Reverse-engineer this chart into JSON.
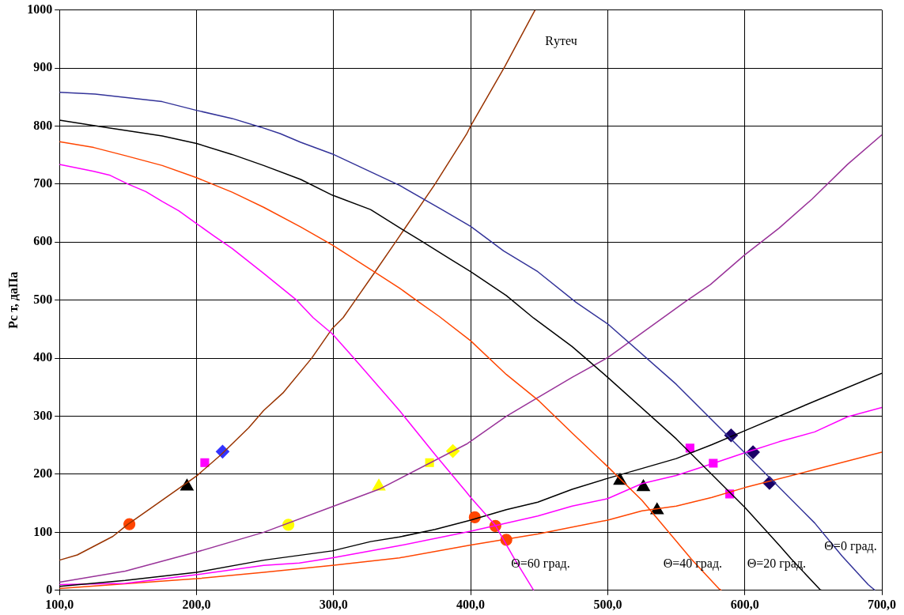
{
  "chart_data": {
    "type": "line",
    "ylabel": "Рс т, даПа",
    "xlim": [
      100,
      700
    ],
    "ylim": [
      0,
      1000
    ],
    "xticks": [
      {
        "value": 100,
        "label": "100,0"
      },
      {
        "value": 200,
        "label": "200,0"
      },
      {
        "value": 300,
        "label": "300,0"
      },
      {
        "value": 400,
        "label": "400,0"
      },
      {
        "value": 500,
        "label": "500,0"
      },
      {
        "value": 600,
        "label": "600,0"
      },
      {
        "value": 700,
        "label": "700,0"
      }
    ],
    "yticks": [
      0,
      100,
      200,
      300,
      400,
      500,
      600,
      700,
      800,
      900,
      1000
    ],
    "grid": true,
    "legend": false,
    "marker": "none",
    "line_style": "solid",
    "annotations": [
      "Rутеч",
      "Θ=60 град.",
      "Θ=40 град.",
      "Θ=20 град.",
      "Θ=0 град."
    ],
    "series": [
      {
        "color": "#333399",
        "x": [
          100,
          126,
          175,
          200,
          226,
          247,
          261,
          276,
          299,
          348,
          379,
          400,
          424,
          449,
          477,
          500,
          550,
          600,
          651,
          671,
          690,
          695
        ],
        "values": [
          858,
          855,
          842,
          827,
          813,
          798,
          787,
          772,
          752,
          698,
          656,
          627,
          585,
          549,
          496,
          459,
          355,
          237,
          116,
          59,
          10,
          0
        ]
      },
      {
        "color": "#000000",
        "x": [
          100,
          133,
          175,
          200,
          226,
          249,
          276,
          299,
          327,
          350,
          364,
          385,
          400,
          426,
          446,
          474,
          500,
          550,
          600,
          625,
          634,
          655,
          656
        ],
        "values": [
          810,
          798,
          783,
          770,
          751,
          732,
          708,
          681,
          656,
          622,
          602,
          571,
          549,
          508,
          469,
          420,
          367,
          261,
          143,
          78,
          54,
          1,
          0
        ]
      },
      {
        "color": "#ff4500",
        "x": [
          100,
          125,
          148,
          175,
          200,
          226,
          249,
          276,
          299,
          327,
          348,
          362,
          377,
          400,
          426,
          450,
          474,
          500,
          525,
          550,
          561,
          581,
          583
        ],
        "values": [
          773,
          763,
          749,
          732,
          711,
          686,
          660,
          626,
          595,
          553,
          521,
          497,
          472,
          430,
          372,
          326,
          271,
          213,
          155,
          85,
          54,
          3,
          0
        ]
      },
      {
        "color": "#ff00ff",
        "x": [
          100,
          125,
          137,
          150,
          163,
          175,
          187,
          200,
          213,
          226,
          249,
          273,
          285,
          299,
          313,
          348,
          374,
          397,
          400,
          418,
          432,
          446
        ],
        "values": [
          734,
          722,
          715,
          700,
          687,
          670,
          654,
          632,
          610,
          589,
          546,
          500,
          470,
          442,
          405,
          310,
          234,
          169,
          160,
          112,
          54,
          0
        ]
      },
      {
        "color": "#993300",
        "x": [
          100,
          113,
          139,
          150,
          164,
          200,
          218,
          238,
          249,
          263,
          284,
          299,
          307,
          315,
          330,
          346,
          374,
          397,
          400,
          425,
          447
        ],
        "values": [
          52,
          61,
          93,
          114,
          137,
          197,
          234,
          280,
          310,
          340,
          400,
          451,
          470,
          497,
          548,
          603,
          700,
          786,
          800,
          903,
          1000
        ]
      },
      {
        "color": "#993399",
        "x": [
          100,
          148,
          200,
          249,
          299,
          333,
          397,
          426,
          474,
          500,
          557,
          575,
          600,
          625,
          649,
          675,
          700
        ],
        "values": [
          14,
          33,
          66,
          100,
          144,
          174,
          252,
          300,
          367,
          401,
          498,
          527,
          578,
          624,
          674,
          734,
          785
        ]
      },
      {
        "color": "#000000",
        "x": [
          100,
          148,
          200,
          249,
          299,
          327,
          348,
          374,
          400,
          426,
          449,
          474,
          500,
          550,
          576,
          600,
          651,
          700
        ],
        "values": [
          7,
          17,
          31,
          52,
          68,
          84,
          92,
          105,
          121,
          139,
          152,
          174,
          193,
          227,
          251,
          275,
          326,
          374
        ]
      },
      {
        "color": "#ff00ff",
        "x": [
          100,
          148,
          200,
          249,
          275,
          299,
          348,
          400,
          449,
          474,
          500,
          525,
          550,
          576,
          600,
          625,
          651,
          675,
          700
        ],
        "values": [
          10,
          12,
          27,
          43,
          47,
          56,
          77,
          102,
          128,
          145,
          158,
          184,
          198,
          218,
          237,
          256,
          273,
          299,
          315
        ]
      },
      {
        "color": "#ff4500",
        "x": [
          100,
          200,
          249,
          299,
          348,
          400,
          449,
          500,
          525,
          550,
          576,
          600,
          651,
          700
        ],
        "values": [
          3,
          20,
          31,
          43,
          56,
          78,
          97,
          121,
          137,
          145,
          160,
          177,
          208,
          238
        ]
      },
      {
        "type": "scatter",
        "marker": "circle",
        "color": "#ff4500",
        "x": [
          151
        ],
        "values": [
          114
        ]
      },
      {
        "type": "scatter",
        "marker": "triangle",
        "color": "#000000",
        "x": [
          193
        ],
        "values": [
          179
        ]
      },
      {
        "type": "scatter",
        "marker": "square",
        "color": "#ff00ff",
        "x": [
          206
        ],
        "values": [
          220
        ]
      },
      {
        "type": "scatter",
        "marker": "diamond",
        "color": "#3333ff",
        "x": [
          219
        ],
        "values": [
          239
        ]
      },
      {
        "type": "scatter",
        "marker": "circle",
        "color": "#ffff00",
        "x": [
          267
        ],
        "values": [
          113
        ]
      },
      {
        "type": "scatter",
        "marker": "triangle",
        "color": "#ffff00",
        "x": [
          333
        ],
        "values": [
          179
        ]
      },
      {
        "type": "scatter",
        "marker": "square",
        "color": "#ffff00",
        "x": [
          370
        ],
        "values": [
          220
        ]
      },
      {
        "type": "scatter",
        "marker": "diamond",
        "color": "#ffff00",
        "x": [
          387
        ],
        "values": [
          240
        ]
      },
      {
        "type": "scatter",
        "marker": "circle",
        "color": "#ff4500",
        "x": [
          403,
          418,
          426
        ],
        "values": [
          126,
          111,
          87
        ]
      },
      {
        "type": "scatter",
        "marker": "triangle",
        "color": "#000000",
        "x": [
          509,
          526,
          536
        ],
        "values": [
          189,
          178,
          138
        ]
      },
      {
        "type": "scatter",
        "marker": "square",
        "color": "#ff00ff",
        "x": [
          560,
          577,
          589
        ],
        "values": [
          245,
          219,
          166
        ]
      },
      {
        "type": "scatter",
        "marker": "diamond",
        "color": "#1a0066",
        "x": [
          590,
          606,
          618
        ],
        "values": [
          267,
          238,
          185
        ]
      }
    ]
  }
}
